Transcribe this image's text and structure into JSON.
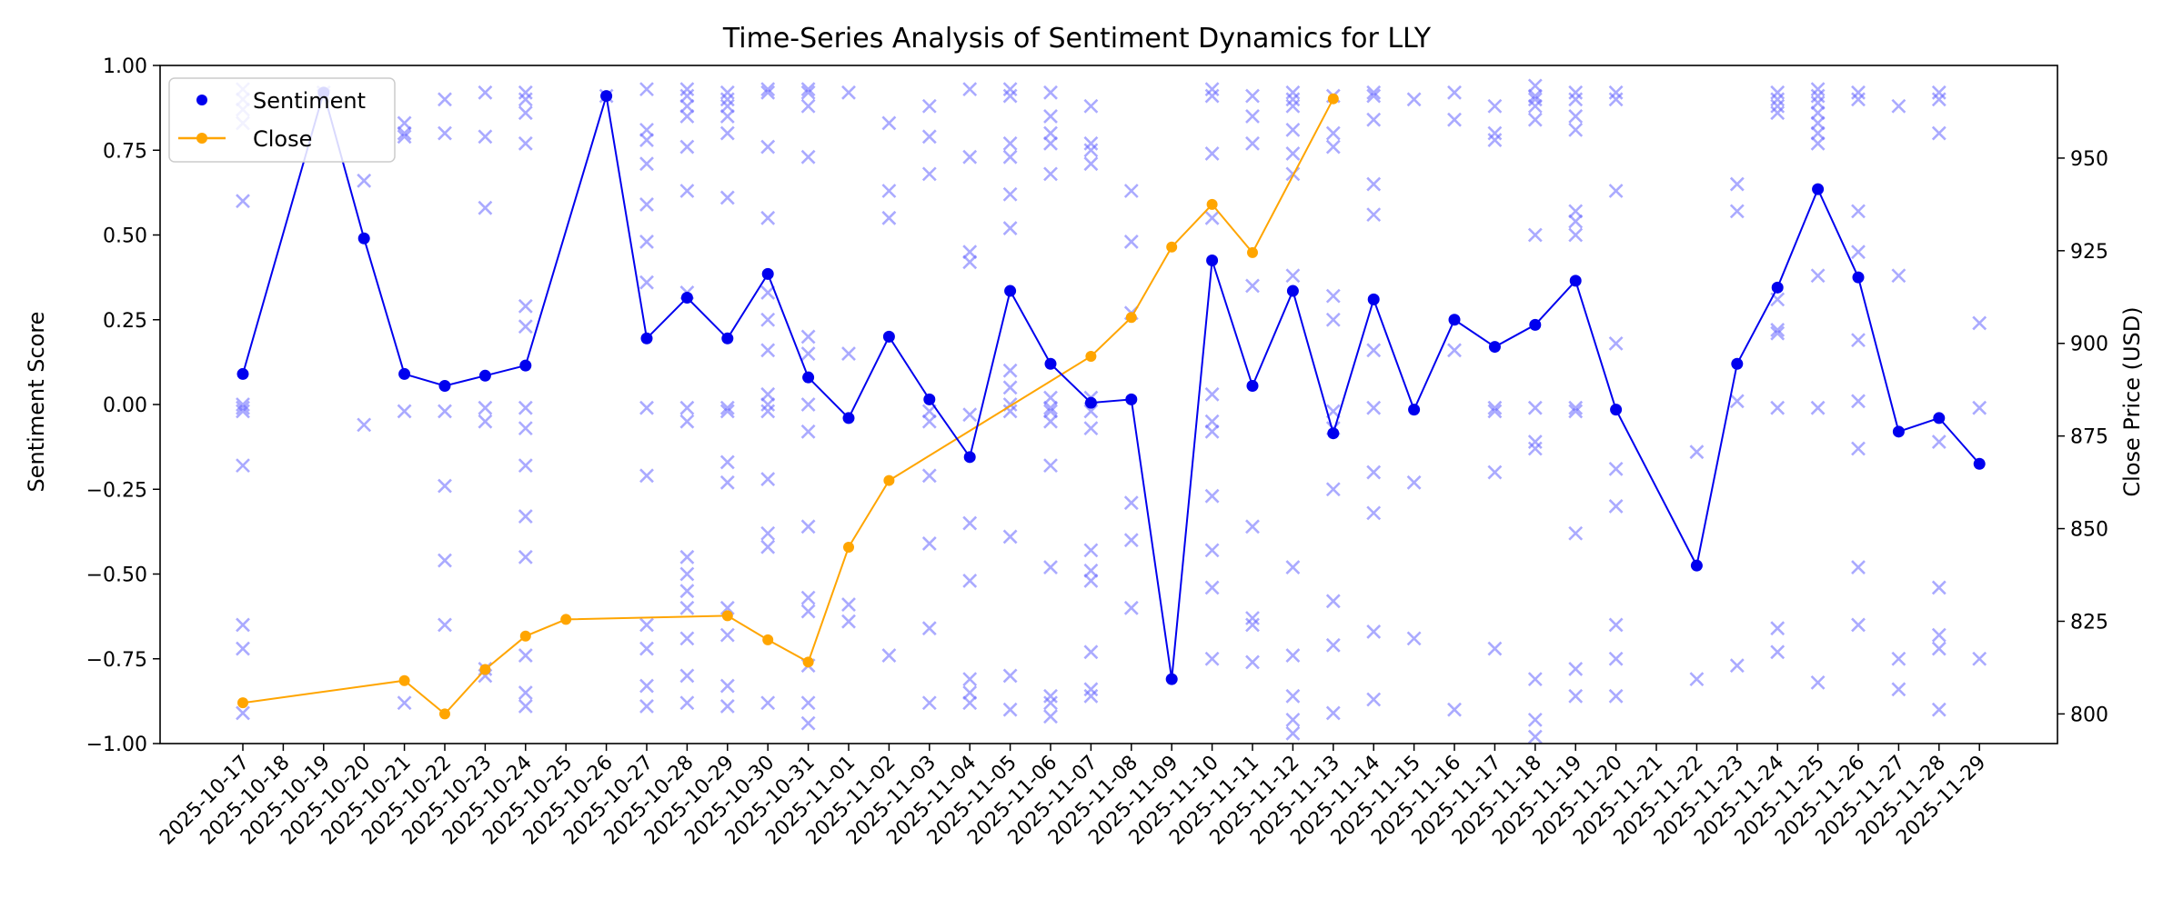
{
  "chart_data": {
    "type": "line",
    "title": "Time-Series Analysis of Sentiment Dynamics for LLY",
    "ylabel_left": "Sentiment Score",
    "ylabel_right": "Close Price (USD)",
    "ylim_left": [
      -1.0,
      1.0
    ],
    "ylim_right": [
      792,
      975
    ],
    "yticks_left": [
      "1.00",
      "0.75",
      "0.50",
      "0.25",
      "0.00",
      "−0.25",
      "−0.50",
      "−0.75",
      "−1.00"
    ],
    "yticks_left_values": [
      1.0,
      0.75,
      0.5,
      0.25,
      0.0,
      -0.25,
      -0.5,
      -0.75,
      -1.0
    ],
    "yticks_right": [
      "950",
      "925",
      "900",
      "875",
      "850",
      "825",
      "800"
    ],
    "yticks_right_values": [
      950,
      925,
      900,
      875,
      850,
      825,
      800
    ],
    "legend": [
      "Sentiment",
      "Close"
    ],
    "legend_position": "upper-left",
    "colors": {
      "sentiment": "#0000ee",
      "close": "#ffa500",
      "raw": "#6464ff"
    },
    "dates": [
      "2025-10-17",
      "2025-10-18",
      "2025-10-19",
      "2025-10-20",
      "2025-10-21",
      "2025-10-22",
      "2025-10-23",
      "2025-10-24",
      "2025-10-25",
      "2025-10-26",
      "2025-10-27",
      "2025-10-28",
      "2025-10-29",
      "2025-10-30",
      "2025-10-31",
      "2025-11-01",
      "2025-11-02",
      "2025-11-03",
      "2025-11-04",
      "2025-11-05",
      "2025-11-06",
      "2025-11-07",
      "2025-11-08",
      "2025-11-09",
      "2025-11-10",
      "2025-11-11",
      "2025-11-12",
      "2025-11-13",
      "2025-11-14",
      "2025-11-15",
      "2025-11-16",
      "2025-11-17",
      "2025-11-18",
      "2025-11-19",
      "2025-11-20",
      "2025-11-21",
      "2025-11-22",
      "2025-11-23",
      "2025-11-24",
      "2025-11-25",
      "2025-11-26",
      "2025-11-27",
      "2025-11-28",
      "2025-11-29"
    ],
    "sentiment_series": [
      {
        "x": 0,
        "y": 0.09
      },
      {
        "x": 2,
        "y": 0.92
      },
      {
        "x": 3,
        "y": 0.49
      },
      {
        "x": 4,
        "y": 0.09
      },
      {
        "x": 5,
        "y": 0.055
      },
      {
        "x": 6,
        "y": 0.085
      },
      {
        "x": 7,
        "y": 0.115
      },
      {
        "x": 9,
        "y": 0.91
      },
      {
        "x": 10,
        "y": 0.195
      },
      {
        "x": 11,
        "y": 0.315
      },
      {
        "x": 12,
        "y": 0.195
      },
      {
        "x": 13,
        "y": 0.385
      },
      {
        "x": 14,
        "y": 0.08
      },
      {
        "x": 15,
        "y": -0.04
      },
      {
        "x": 16,
        "y": 0.2
      },
      {
        "x": 17,
        "y": 0.015
      },
      {
        "x": 18,
        "y": -0.155
      },
      {
        "x": 19,
        "y": 0.335
      },
      {
        "x": 20,
        "y": 0.12
      },
      {
        "x": 21,
        "y": 0.005
      },
      {
        "x": 22,
        "y": 0.015
      },
      {
        "x": 23,
        "y": -0.81
      },
      {
        "x": 24,
        "y": 0.425
      },
      {
        "x": 25,
        "y": 0.055
      },
      {
        "x": 26,
        "y": 0.335
      },
      {
        "x": 27,
        "y": -0.085
      },
      {
        "x": 28,
        "y": 0.31
      },
      {
        "x": 29,
        "y": -0.015
      },
      {
        "x": 30,
        "y": 0.25
      },
      {
        "x": 31,
        "y": 0.17
      },
      {
        "x": 32,
        "y": 0.235
      },
      {
        "x": 33,
        "y": 0.365
      },
      {
        "x": 34,
        "y": -0.015
      },
      {
        "x": 36,
        "y": -0.475
      },
      {
        "x": 37,
        "y": 0.12
      },
      {
        "x": 38,
        "y": 0.345
      },
      {
        "x": 39,
        "y": 0.635
      },
      {
        "x": 40,
        "y": 0.375
      },
      {
        "x": 41,
        "y": -0.08
      },
      {
        "x": 42,
        "y": -0.04
      },
      {
        "x": 43,
        "y": -0.175
      }
    ],
    "close_series": [
      {
        "x": 0,
        "y": 803
      },
      {
        "x": 4,
        "y": 809
      },
      {
        "x": 5,
        "y": 800
      },
      {
        "x": 6,
        "y": 812
      },
      {
        "x": 7,
        "y": 821
      },
      {
        "x": 8,
        "y": 825.5
      },
      {
        "x": 12,
        "y": 826.5
      },
      {
        "x": 13,
        "y": 820
      },
      {
        "x": 14,
        "y": 814
      },
      {
        "x": 15,
        "y": 845
      },
      {
        "x": 16,
        "y": 863
      },
      {
        "x": 21,
        "y": 896.5
      },
      {
        "x": 22,
        "y": 907
      },
      {
        "x": 23,
        "y": 926
      },
      {
        "x": 24,
        "y": 937.5
      },
      {
        "x": 25,
        "y": 924.5
      },
      {
        "x": 27,
        "y": 966
      }
    ],
    "raw_scores": [
      [
        0.93,
        0.9,
        0.87,
        0.83,
        0.6,
        0.0,
        -0.01,
        -0.02,
        -0.18,
        -0.65,
        -0.72,
        -0.91
      ],
      [],
      [
        0.92,
        0.91
      ],
      [
        0.66,
        -0.06
      ],
      [
        0.83,
        0.8,
        0.79,
        -0.02,
        -0.88
      ],
      [
        0.9,
        0.8,
        -0.02,
        -0.24,
        -0.46,
        -0.65
      ],
      [
        0.92,
        0.79,
        0.58,
        -0.01,
        -0.05,
        -0.78,
        -0.8
      ],
      [
        0.92,
        0.9,
        0.86,
        0.77,
        0.29,
        0.23,
        -0.01,
        -0.07,
        -0.18,
        -0.33,
        -0.45,
        -0.74,
        -0.85,
        -0.89
      ],
      [],
      [
        0.91
      ],
      [
        0.93,
        0.81,
        0.78,
        0.71,
        0.59,
        0.48,
        0.36,
        -0.01,
        -0.21,
        -0.65,
        -0.72,
        -0.83,
        -0.89
      ],
      [
        0.93,
        0.91,
        0.88,
        0.85,
        0.76,
        0.63,
        0.33,
        -0.01,
        -0.05,
        -0.45,
        -0.5,
        -0.55,
        -0.6,
        -0.69,
        -0.8,
        -0.88
      ],
      [
        0.92,
        0.9,
        0.88,
        0.85,
        0.8,
        0.61,
        -0.01,
        -0.02,
        -0.17,
        -0.23,
        -0.6,
        -0.68,
        -0.83,
        -0.89
      ],
      [
        0.93,
        0.92,
        0.76,
        0.55,
        0.33,
        0.25,
        0.16,
        0.03,
        0.0,
        -0.02,
        -0.22,
        -0.38,
        -0.42,
        -0.88
      ],
      [
        0.93,
        0.92,
        0.88,
        0.73,
        0.2,
        0.15,
        0.0,
        -0.08,
        -0.36,
        -0.57,
        -0.61,
        -0.77,
        -0.88,
        -0.94
      ],
      [
        0.92,
        0.15,
        -0.59,
        -0.64
      ],
      [
        0.83,
        0.63,
        0.55,
        -0.74
      ],
      [
        0.88,
        0.79,
        0.68,
        -0.02,
        -0.05,
        -0.21,
        -0.41,
        -0.66,
        -0.88
      ],
      [
        0.93,
        0.73,
        0.45,
        0.42,
        -0.03,
        -0.35,
        -0.52,
        -0.81,
        -0.85,
        -0.88
      ],
      [
        0.93,
        0.91,
        0.77,
        0.73,
        0.62,
        0.52,
        0.1,
        0.05,
        0.0,
        -0.02,
        -0.39,
        -0.8,
        -0.9
      ],
      [
        0.92,
        0.85,
        0.8,
        0.77,
        0.68,
        0.02,
        -0.01,
        -0.02,
        -0.05,
        -0.18,
        -0.48,
        -0.86,
        -0.88,
        -0.92
      ],
      [
        0.88,
        0.77,
        0.75,
        0.71,
        0.02,
        -0.02,
        -0.07,
        -0.43,
        -0.49,
        -0.52,
        -0.73,
        -0.84,
        -0.86
      ],
      [
        0.63,
        0.48,
        0.27,
        -0.29,
        -0.4,
        -0.6
      ],
      [],
      [
        0.93,
        0.91,
        0.74,
        0.55,
        0.03,
        -0.05,
        -0.08,
        -0.27,
        -0.43,
        -0.54,
        -0.75
      ],
      [
        0.91,
        0.85,
        0.77,
        0.35,
        -0.36,
        -0.63,
        -0.65,
        -0.76
      ],
      [
        0.92,
        0.9,
        0.88,
        0.81,
        0.74,
        0.68,
        0.38,
        -0.48,
        -0.74,
        -0.86,
        -0.93,
        -0.97
      ],
      [
        0.91,
        0.8,
        0.76,
        0.32,
        0.25,
        -0.02,
        -0.07,
        -0.25,
        -0.58,
        -0.71,
        -0.91
      ],
      [
        0.92,
        0.91,
        0.84,
        0.65,
        0.56,
        0.16,
        -0.01,
        -0.2,
        -0.32,
        -0.67,
        -0.87
      ],
      [
        0.9,
        -0.23,
        -0.69
      ],
      [
        0.92,
        0.84,
        0.16,
        -0.9
      ],
      [
        0.88,
        0.8,
        0.78,
        -0.01,
        -0.02,
        -0.2,
        -0.72
      ],
      [
        0.94,
        0.91,
        0.9,
        0.88,
        0.84,
        0.5,
        -0.01,
        -0.11,
        -0.13,
        -0.81,
        -0.93,
        -0.98
      ],
      [
        0.92,
        0.9,
        0.85,
        0.81,
        0.57,
        0.54,
        0.5,
        -0.01,
        -0.02,
        -0.38,
        -0.78,
        -0.86
      ],
      [
        0.92,
        0.9,
        0.63,
        0.18,
        -0.19,
        -0.3,
        -0.65,
        -0.75,
        -0.86
      ],
      [],
      [
        -0.14,
        -0.81
      ],
      [
        0.65,
        0.57,
        0.01,
        -0.77
      ],
      [
        0.92,
        0.9,
        0.88,
        0.86,
        0.31,
        0.22,
        0.21,
        -0.01,
        -0.66,
        -0.73
      ],
      [
        0.93,
        0.91,
        0.89,
        0.86,
        0.83,
        0.8,
        0.77,
        0.38,
        -0.01,
        -0.82
      ],
      [
        0.92,
        0.9,
        0.57,
        0.45,
        0.19,
        0.01,
        -0.13,
        -0.48,
        -0.65
      ],
      [
        0.88,
        0.38,
        -0.75,
        -0.84
      ],
      [
        0.92,
        0.9,
        0.8,
        -0.11,
        -0.54,
        -0.68,
        -0.72,
        -0.9
      ],
      [
        0.24,
        -0.01,
        -0.75
      ]
    ]
  }
}
